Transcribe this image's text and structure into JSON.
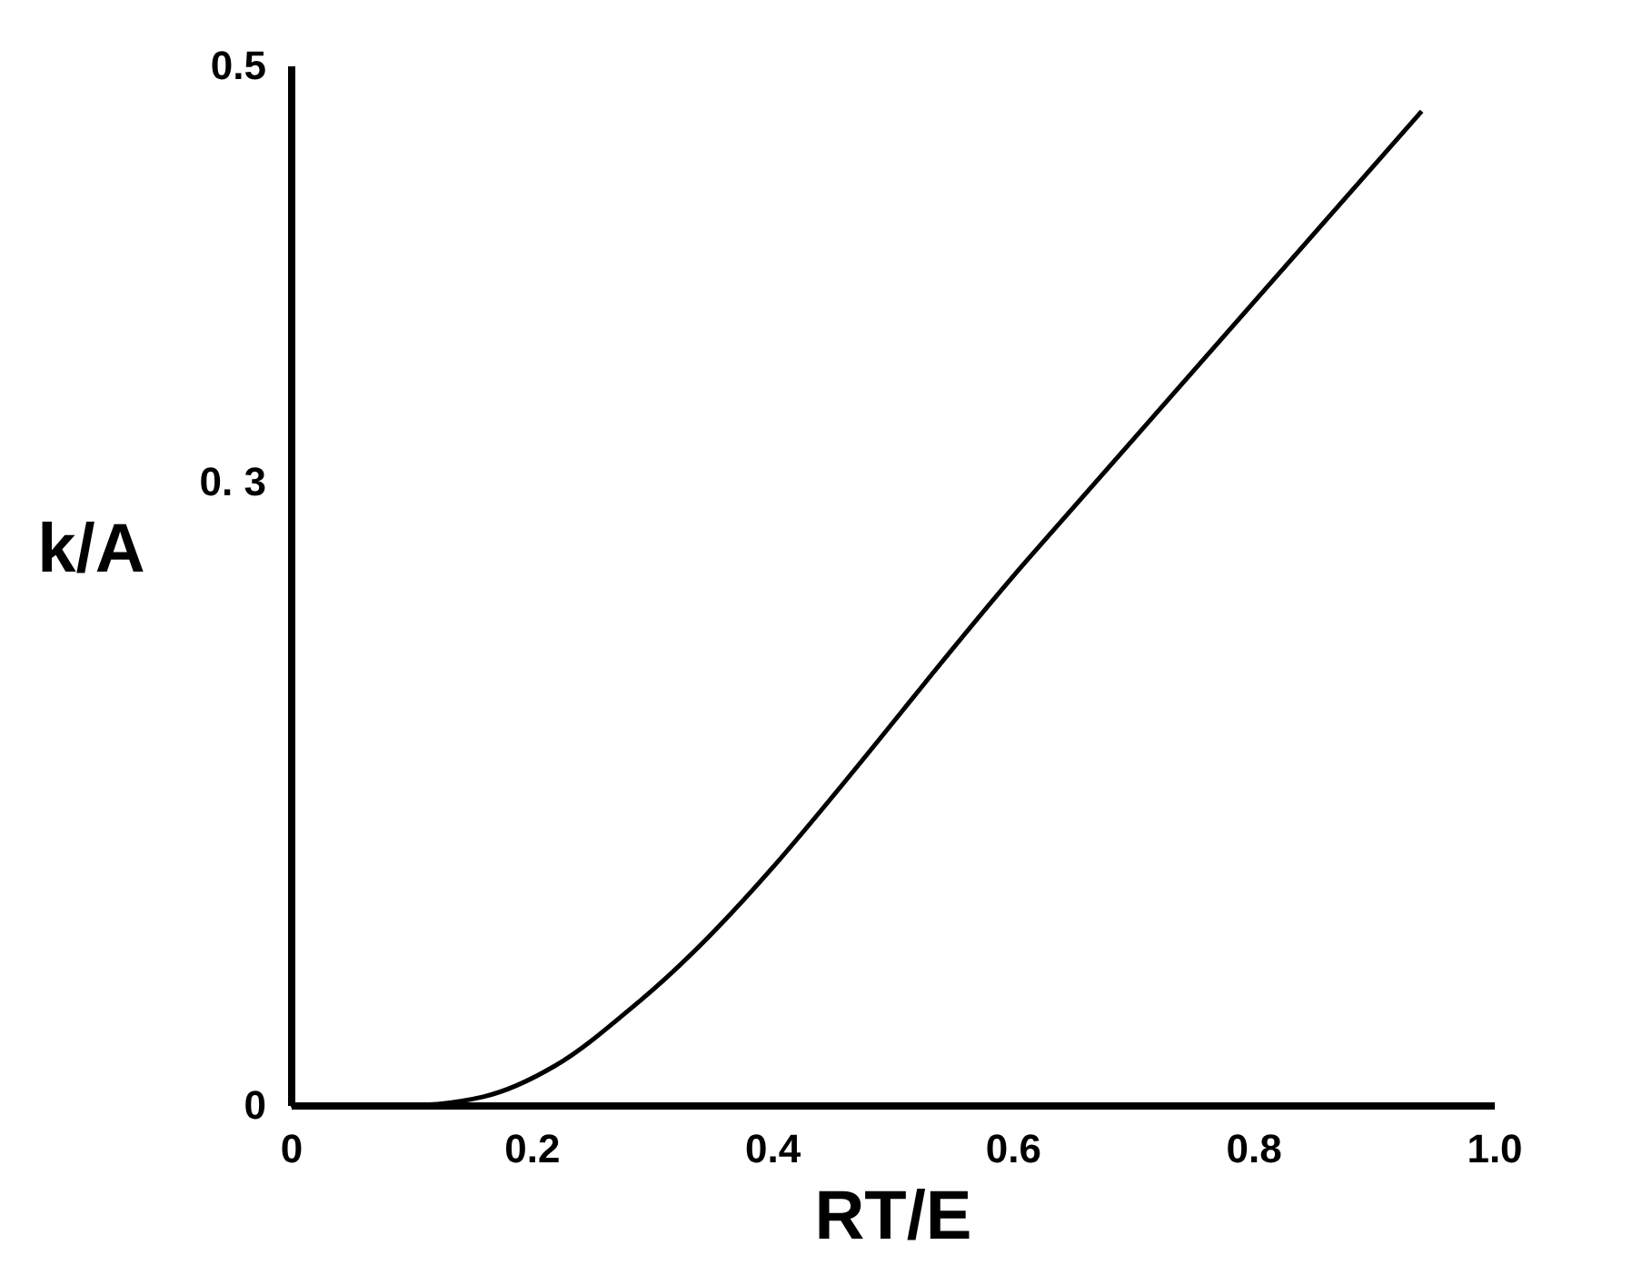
{
  "chart_data": {
    "type": "line",
    "xlabel": "RT/E",
    "ylabel": "k/A",
    "x": [
      0,
      0.1,
      0.16,
      0.22,
      0.29,
      0.615,
      0.94
    ],
    "series": [
      {
        "color": "#000000",
        "values": [
          0,
          0,
          0.004,
          0.019,
          0.05,
          0.264,
          0.478
        ]
      }
    ],
    "xlim": [
      0,
      1
    ],
    "xticks": [
      0,
      0.2,
      0.4,
      0.6,
      0.8,
      {
        "value": 1,
        "label": "1.0"
      }
    ],
    "ylim": [
      0,
      0.5
    ],
    "yticks": [
      0,
      {
        "value": 0.3,
        "label": "0. 3"
      },
      0.5
    ],
    "grid": false,
    "marker": "none",
    "line_style": "solid"
  }
}
